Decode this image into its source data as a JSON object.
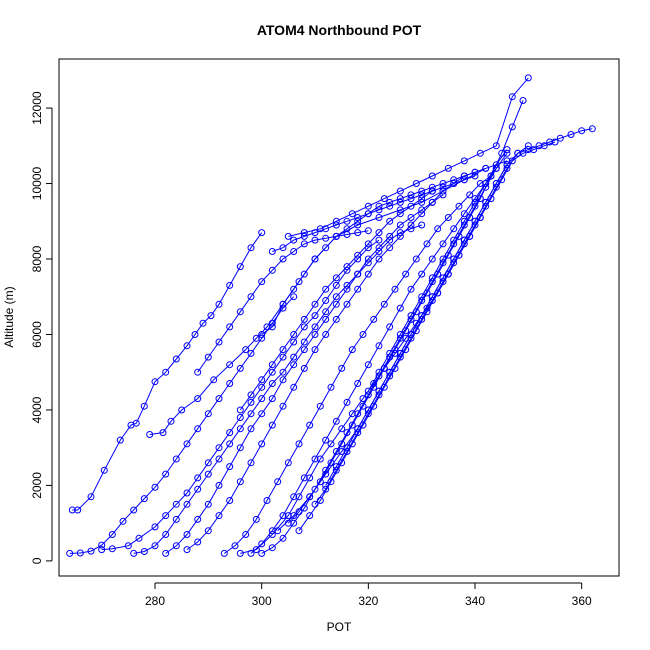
{
  "chart_data": {
    "type": "line",
    "title": "ATOM4 Northbound POT",
    "xlabel": "POT",
    "ylabel": "Altitude (m)",
    "xlim": [
      262,
      367
    ],
    "ylim": [
      -400,
      13300
    ],
    "xticks": [
      280,
      300,
      320,
      340,
      360
    ],
    "yticks": [
      0,
      2000,
      4000,
      6000,
      8000,
      10000,
      12000
    ],
    "grid": false,
    "legend": "none",
    "marker": "open-circle",
    "colors": {
      "series": "#0000ff",
      "axes": "#000000",
      "background": "#ffffff"
    },
    "series": [
      {
        "x": [
          264.5,
          265.5,
          268,
          270.5,
          273.5,
          275.5,
          276.5,
          278,
          280,
          282,
          284,
          286,
          287.5,
          289,
          290.5,
          292,
          294,
          296,
          298,
          300
        ],
        "y": [
          1350,
          1350,
          1700,
          2400,
          3200,
          3600,
          3650,
          4100,
          4750,
          5000,
          5350,
          5700,
          6000,
          6300,
          6500,
          6800,
          7300,
          7800,
          8300,
          8700
        ]
      },
      {
        "x": [
          279,
          281.5,
          283,
          285,
          288,
          291,
          294,
          297,
          299,
          301,
          304,
          307,
          310,
          314,
          318,
          322,
          326,
          330,
          334,
          338,
          342,
          346
        ],
        "y": [
          3350,
          3400,
          3700,
          4000,
          4300,
          4800,
          5200,
          5600,
          5900,
          6200,
          6800,
          7400,
          8000,
          8600,
          8900,
          9100,
          9300,
          9500,
          9800,
          10100,
          10400,
          10600
        ]
      },
      {
        "x": [
          264,
          266,
          268,
          270,
          272,
          274,
          276,
          278,
          280,
          282,
          284,
          286,
          288,
          290,
          292,
          294,
          296,
          298,
          300,
          302,
          304,
          306
        ],
        "y": [
          200,
          210,
          260,
          420,
          700,
          1050,
          1350,
          1650,
          1950,
          2300,
          2700,
          3100,
          3500,
          3900,
          4300,
          4700,
          5100,
          5500,
          5900,
          6300,
          6700,
          7000
        ]
      },
      {
        "x": [
          270,
          272,
          275,
          277,
          280,
          282,
          284,
          286,
          288,
          290,
          292,
          294,
          296,
          298,
          300,
          302,
          304,
          306,
          308,
          310,
          312,
          314,
          316,
          318,
          320,
          322
        ],
        "y": [
          300,
          320,
          400,
          600,
          900,
          1200,
          1500,
          1800,
          2200,
          2600,
          3000,
          3400,
          3800,
          4200,
          4600,
          5000,
          5400,
          5800,
          6200,
          6500,
          6900,
          7300,
          7700,
          8000,
          8300,
          8500
        ]
      },
      {
        "x": [
          276,
          278,
          280,
          282,
          284,
          286,
          288,
          290,
          292,
          294,
          296,
          298,
          300,
          302,
          304,
          306,
          308,
          310,
          312,
          314,
          316,
          318,
          320,
          322,
          324,
          326,
          328,
          330
        ],
        "y": [
          200,
          250,
          400,
          700,
          1100,
          1500,
          1900,
          2300,
          2700,
          3100,
          3500,
          3900,
          4300,
          4700,
          5000,
          5400,
          5800,
          6200,
          6600,
          7000,
          7300,
          7600,
          7900,
          8200,
          8500,
          8700,
          8800,
          8900
        ]
      },
      {
        "x": [
          282,
          284,
          286,
          288,
          290,
          292,
          294,
          296,
          298,
          300,
          302,
          304,
          306,
          308,
          310,
          312,
          314,
          316,
          318,
          320,
          322,
          324,
          326,
          328,
          330,
          332,
          334
        ],
        "y": [
          200,
          400,
          700,
          1100,
          1500,
          2000,
          2500,
          3000,
          3500,
          3900,
          4300,
          4800,
          5200,
          5600,
          6000,
          6400,
          6800,
          7200,
          7600,
          8000,
          8300,
          8600,
          8900,
          9100,
          9300,
          9500,
          9700
        ]
      },
      {
        "x": [
          286,
          288,
          290,
          292,
          294,
          296,
          298,
          300,
          302,
          304,
          306,
          308,
          310,
          312,
          314,
          316,
          318,
          320,
          322,
          324,
          326,
          328,
          330,
          332,
          334,
          336,
          338,
          340
        ],
        "y": [
          300,
          500,
          800,
          1200,
          1600,
          2100,
          2600,
          3100,
          3600,
          4100,
          4600,
          5100,
          5600,
          6000,
          6400,
          6800,
          7200,
          7600,
          8000,
          8300,
          8600,
          8900,
          9200,
          9500,
          9800,
          10000,
          10200,
          10300
        ]
      },
      {
        "x": [
          293,
          295,
          297,
          299,
          301,
          303,
          305,
          307,
          309,
          311,
          313,
          315,
          317,
          319,
          321,
          323,
          325,
          327,
          329,
          331,
          333,
          335,
          337,
          339,
          341,
          343
        ],
        "y": [
          200,
          400,
          700,
          1100,
          1600,
          2100,
          2600,
          3100,
          3600,
          4100,
          4600,
          5100,
          5600,
          6000,
          6400,
          6800,
          7200,
          7600,
          8000,
          8400,
          8800,
          9100,
          9400,
          9700,
          10000,
          10200
        ]
      },
      {
        "x": [
          298,
          300,
          302,
          304,
          306,
          308,
          310,
          312,
          314,
          316,
          318,
          320,
          322,
          324,
          326,
          328,
          330,
          332,
          334,
          336,
          338,
          340,
          342,
          344,
          346
        ],
        "y": [
          200,
          450,
          800,
          1200,
          1700,
          2200,
          2700,
          3200,
          3700,
          4200,
          4700,
          5200,
          5700,
          6200,
          6700,
          7200,
          7600,
          8000,
          8400,
          8800,
          9200,
          9600,
          10000,
          10400,
          10800
        ]
      },
      {
        "x": [
          300,
          302,
          304,
          306,
          308,
          310,
          312,
          314,
          316,
          318,
          320,
          322,
          324,
          326,
          328,
          330,
          332,
          334,
          336,
          338,
          340,
          342,
          344
        ],
        "y": [
          200,
          350,
          600,
          1000,
          1400,
          1900,
          2400,
          2900,
          3400,
          3900,
          4400,
          4900,
          5400,
          5900,
          6400,
          6900,
          7400,
          7900,
          8400,
          8900,
          9400,
          9900,
          10400
        ]
      },
      {
        "x": [
          296,
          299,
          302,
          305,
          307,
          309,
          311,
          313,
          315,
          317,
          319,
          321,
          323,
          325,
          327,
          329,
          331,
          333,
          335,
          337,
          339,
          341
        ],
        "y": [
          200,
          300,
          700,
          1200,
          1700,
          2200,
          2700,
          3100,
          3500,
          3900,
          4300,
          4700,
          5100,
          5500,
          5900,
          6300,
          6700,
          7100,
          7600,
          8100,
          8600,
          9100
        ]
      },
      {
        "x": [
          303,
          306,
          309,
          312,
          315,
          318,
          320,
          322,
          324,
          326,
          328,
          330,
          332,
          334,
          336,
          338,
          340,
          342,
          344,
          346,
          348,
          350,
          352,
          354,
          356,
          358,
          360,
          362
        ],
        "y": [
          800,
          1200,
          1700,
          2300,
          2900,
          3500,
          4000,
          4500,
          5000,
          5500,
          6000,
          6500,
          7000,
          7500,
          8000,
          8500,
          9000,
          9500,
          10000,
          10500,
          10800,
          10900,
          11000,
          11100,
          11200,
          11300,
          11400,
          11450
        ]
      },
      {
        "x": [
          305,
          307,
          309,
          311,
          313,
          315,
          317,
          319,
          321,
          323,
          325,
          327,
          329,
          331,
          333,
          335,
          337,
          339,
          341,
          343,
          345,
          347,
          349
        ],
        "y": [
          1000,
          1300,
          1700,
          2100,
          2600,
          3100,
          3600,
          4100,
          4600,
          5100,
          5600,
          6100,
          6600,
          7100,
          7600,
          8100,
          8600,
          9100,
          9600,
          10200,
          10800,
          11500,
          12200
        ]
      },
      {
        "x": [
          307,
          309,
          311,
          313,
          315,
          317,
          319,
          321,
          323,
          325,
          327,
          329,
          331,
          333,
          335,
          337,
          339,
          341,
          343,
          345,
          347,
          349,
          351,
          353,
          355
        ],
        "y": [
          800,
          1200,
          1600,
          2100,
          2600,
          3100,
          3600,
          4100,
          4600,
          5100,
          5600,
          6100,
          6600,
          7100,
          7600,
          8100,
          8600,
          9100,
          9600,
          10100,
          10600,
          10800,
          10900,
          11000,
          11100
        ]
      },
      {
        "x": [
          310,
          312,
          314,
          316,
          318,
          320,
          322,
          324,
          326,
          328,
          330,
          332,
          334,
          336,
          338,
          340,
          342,
          344,
          346,
          348,
          350
        ],
        "y": [
          1500,
          1900,
          2400,
          2900,
          3400,
          3900,
          4400,
          4900,
          5400,
          5900,
          6400,
          6900,
          7400,
          7900,
          8400,
          8900,
          9400,
          9900,
          10400,
          10800,
          11000
        ]
      },
      {
        "x": [
          312,
          314,
          316,
          318,
          320,
          322,
          324,
          326,
          328,
          330,
          332,
          334,
          336,
          338,
          340,
          342,
          344,
          346
        ],
        "y": [
          2000,
          2500,
          3000,
          3500,
          4000,
          4500,
          5000,
          5500,
          6000,
          6500,
          7000,
          7500,
          8000,
          8500,
          9000,
          9500,
          10000,
          10500
        ]
      },
      {
        "x": [
          300,
          302,
          304,
          306,
          308,
          310,
          312,
          314,
          316,
          318,
          320,
          322,
          324,
          326,
          328,
          330,
          332,
          334,
          336,
          338,
          340,
          342
        ],
        "y": [
          6000,
          6200,
          6800,
          7200,
          7600,
          8000,
          8300,
          8600,
          8800,
          9000,
          9200,
          9400,
          9500,
          9600,
          9700,
          9800,
          9900,
          10000,
          10100,
          10200,
          10300,
          10400
        ]
      },
      {
        "x": [
          302,
          304,
          306,
          308,
          310,
          312,
          314,
          316,
          318,
          320,
          322,
          324,
          326,
          328,
          330,
          332,
          334,
          336,
          338,
          340
        ],
        "y": [
          8200,
          8300,
          8500,
          8600,
          8700,
          8800,
          8900,
          9000,
          9100,
          9200,
          9300,
          9400,
          9500,
          9600,
          9700,
          9800,
          9900,
          10000,
          10100,
          10200
        ]
      },
      {
        "x": [
          305,
          308,
          311,
          314,
          317,
          320,
          323,
          326,
          329,
          332,
          335,
          338,
          341,
          344,
          347,
          350
        ],
        "y": [
          8600,
          8700,
          8800,
          9000,
          9200,
          9400,
          9600,
          9800,
          10000,
          10200,
          10400,
          10600,
          10800,
          11000,
          12300,
          12800
        ]
      },
      {
        "x": [
          288,
          290,
          292,
          294,
          296,
          298,
          300,
          302,
          304,
          306,
          308,
          310,
          312,
          314,
          316,
          318,
          320
        ],
        "y": [
          5000,
          5400,
          5800,
          6200,
          6600,
          7000,
          7400,
          7700,
          8000,
          8200,
          8400,
          8500,
          8550,
          8600,
          8650,
          8700,
          8750
        ]
      },
      {
        "x": [
          296,
          298,
          300,
          302,
          304,
          306,
          308,
          310,
          312,
          314,
          316,
          318,
          320,
          322,
          324,
          326,
          328,
          330,
          332
        ],
        "y": [
          4000,
          4400,
          4800,
          5200,
          5600,
          6000,
          6400,
          6800,
          7200,
          7500,
          7800,
          8100,
          8400,
          8700,
          9000,
          9200,
          9400,
          9600,
          9800
        ]
      },
      {
        "x": [
          320,
          322,
          324,
          326,
          328,
          330,
          332,
          334,
          336,
          338,
          340,
          342,
          344,
          346
        ],
        "y": [
          4500,
          5000,
          5500,
          6000,
          6500,
          7000,
          7500,
          8000,
          8500,
          9000,
          9500,
          10000,
          10500,
          10900
        ]
      }
    ]
  }
}
